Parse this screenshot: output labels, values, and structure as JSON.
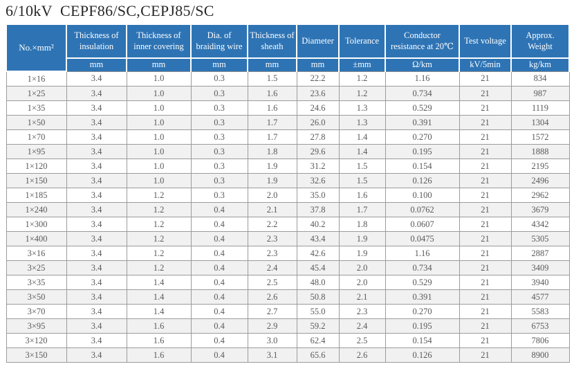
{
  "title": "6/10kV  CEPF86/SC,CEPJ85/SC",
  "colors": {
    "header_bg": "#2e74b5",
    "header_text": "#ffffff",
    "body_text": "#595959",
    "stripe": "#f1f1f1",
    "border": "#9b9b9b"
  },
  "table": {
    "col1_header": "No.×mm²",
    "columns": [
      {
        "label": "Thickness of insulation",
        "unit": "mm"
      },
      {
        "label": "Thickness of inner covering",
        "unit": "mm"
      },
      {
        "label": "Dia. of braiding wire",
        "unit": "mm"
      },
      {
        "label": "Thickness of sheath",
        "unit": "mm"
      },
      {
        "label": "Diameter",
        "unit": "mm"
      },
      {
        "label": "Tolerance",
        "unit": "±mm"
      },
      {
        "label": "Conductor resistance at 20℃",
        "unit": "Ω/km"
      },
      {
        "label": "Test voltage",
        "unit": "kV/5min"
      },
      {
        "label": "Approx. Weight",
        "unit": "kg/km"
      }
    ],
    "rows": [
      [
        "1×16",
        "3.4",
        "1.0",
        "0.3",
        "1.5",
        "22.2",
        "1.2",
        "1.16",
        "21",
        "834"
      ],
      [
        "1×25",
        "3.4",
        "1.0",
        "0.3",
        "1.6",
        "23.6",
        "1.2",
        "0.734",
        "21",
        "987"
      ],
      [
        "1×35",
        "3.4",
        "1.0",
        "0.3",
        "1.6",
        "24.6",
        "1.3",
        "0.529",
        "21",
        "1119"
      ],
      [
        "1×50",
        "3.4",
        "1.0",
        "0.3",
        "1.7",
        "26.0",
        "1.3",
        "0.391",
        "21",
        "1304"
      ],
      [
        "1×70",
        "3.4",
        "1.0",
        "0.3",
        "1.7",
        "27.8",
        "1.4",
        "0.270",
        "21",
        "1572"
      ],
      [
        "1×95",
        "3.4",
        "1.0",
        "0.3",
        "1.8",
        "29.6",
        "1.4",
        "0.195",
        "21",
        "1888"
      ],
      [
        "1×120",
        "3.4",
        "1.0",
        "0.3",
        "1.9",
        "31.2",
        "1.5",
        "0.154",
        "21",
        "2195"
      ],
      [
        "1×150",
        "3.4",
        "1.0",
        "0.3",
        "1.9",
        "32.6",
        "1.5",
        "0.126",
        "21",
        "2496"
      ],
      [
        "1×185",
        "3.4",
        "1.2",
        "0.3",
        "2.0",
        "35.0",
        "1.6",
        "0.100",
        "21",
        "2962"
      ],
      [
        "1×240",
        "3.4",
        "1.2",
        "0.4",
        "2.1",
        "37.8",
        "1.7",
        "0.0762",
        "21",
        "3679"
      ],
      [
        "1×300",
        "3.4",
        "1.2",
        "0.4",
        "2.2",
        "40.2",
        "1.8",
        "0.0607",
        "21",
        "4342"
      ],
      [
        "1×400",
        "3.4",
        "1.2",
        "0.4",
        "2.3",
        "43.4",
        "1.9",
        "0.0475",
        "21",
        "5305"
      ],
      [
        "3×16",
        "3.4",
        "1.2",
        "0.4",
        "2.3",
        "42.6",
        "1.9",
        "1.16",
        "21",
        "2887"
      ],
      [
        "3×25",
        "3.4",
        "1.2",
        "0.4",
        "2.4",
        "45.4",
        "2.0",
        "0.734",
        "21",
        "3409"
      ],
      [
        "3×35",
        "3.4",
        "1.4",
        "0.4",
        "2.5",
        "48.0",
        "2.0",
        "0.529",
        "21",
        "3940"
      ],
      [
        "3×50",
        "3.4",
        "1.4",
        "0.4",
        "2.6",
        "50.8",
        "2.1",
        "0.391",
        "21",
        "4577"
      ],
      [
        "3×70",
        "3.4",
        "1.4",
        "0.4",
        "2.7",
        "55.0",
        "2.3",
        "0.270",
        "21",
        "5583"
      ],
      [
        "3×95",
        "3.4",
        "1.6",
        "0.4",
        "2.9",
        "59.2",
        "2.4",
        "0.195",
        "21",
        "6753"
      ],
      [
        "3×120",
        "3.4",
        "1.6",
        "0.4",
        "3.0",
        "62.4",
        "2.5",
        "0.154",
        "21",
        "7806"
      ],
      [
        "3×150",
        "3.4",
        "1.6",
        "0.4",
        "3.1",
        "65.6",
        "2.6",
        "0.126",
        "21",
        "8900"
      ]
    ]
  }
}
